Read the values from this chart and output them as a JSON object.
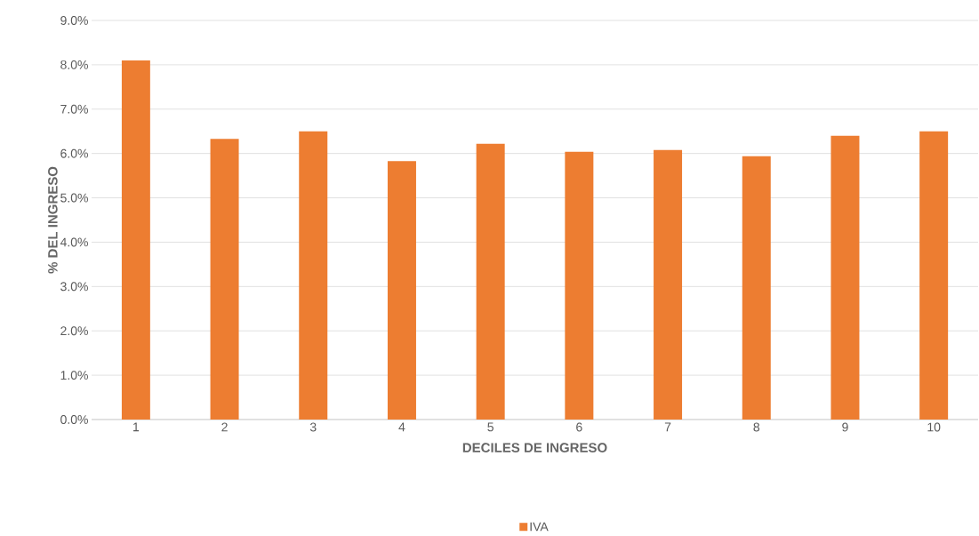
{
  "chart_data": {
    "type": "bar",
    "xlabel": "DECILES DE INGRESO",
    "ylabel": "% DEL INGRESO",
    "categories": [
      "1",
      "2",
      "3",
      "4",
      "5",
      "6",
      "7",
      "8",
      "9",
      "10"
    ],
    "series": [
      {
        "name": "IVA",
        "color": "#ed7d31",
        "values": [
          8.1,
          6.33,
          6.5,
          5.83,
          6.22,
          6.04,
          6.08,
          5.94,
          6.4,
          6.5
        ]
      }
    ],
    "ylim": [
      0,
      9
    ],
    "yticks": [
      {
        "value": 0,
        "label": "0.0%"
      },
      {
        "value": 1,
        "label": "1.0%"
      },
      {
        "value": 2,
        "label": "2.0%"
      },
      {
        "value": 3,
        "label": "3.0%"
      },
      {
        "value": 4,
        "label": "4.0%"
      },
      {
        "value": 5,
        "label": "5.0%"
      },
      {
        "value": 6,
        "label": "6.0%"
      },
      {
        "value": 7,
        "label": "7.0%"
      },
      {
        "value": 8,
        "label": "8.0%"
      },
      {
        "value": 9,
        "label": "9.0%"
      }
    ],
    "grid": "y",
    "legend": "bottom"
  }
}
